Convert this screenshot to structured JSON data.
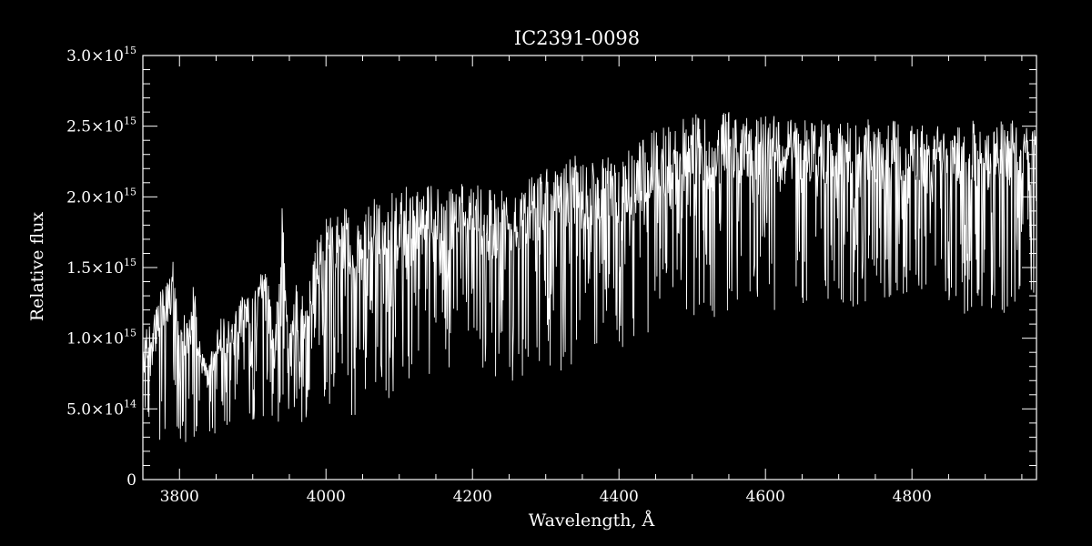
{
  "chart_data": {
    "type": "line",
    "title": "IC2391-0098",
    "xlabel": "Wavelength, Å",
    "ylabel": "Relative flux",
    "xlim": [
      3750,
      4970
    ],
    "ylim": [
      0,
      3000000000000000.0
    ],
    "xticks": [
      {
        "value": 3800,
        "label": "3800"
      },
      {
        "value": 4000,
        "label": "4000"
      },
      {
        "value": 4200,
        "label": "4200"
      },
      {
        "value": 4400,
        "label": "4400"
      },
      {
        "value": 4600,
        "label": "4600"
      },
      {
        "value": 4800,
        "label": "4800"
      }
    ],
    "yticks": [
      {
        "value": 0,
        "label": "0",
        "exp": ""
      },
      {
        "value": 500000000000000.0,
        "label": "5.0×10",
        "exp": "14"
      },
      {
        "value": 1000000000000000.0,
        "label": "1.0×10",
        "exp": "15"
      },
      {
        "value": 1500000000000000.0,
        "label": "1.5×10",
        "exp": "15"
      },
      {
        "value": 2000000000000000.0,
        "label": "2.0×10",
        "exp": "15"
      },
      {
        "value": 2500000000000000.0,
        "label": "2.5×10",
        "exp": "15"
      },
      {
        "value": 3000000000000000.0,
        "label": "3.0×10",
        "exp": "15"
      }
    ],
    "series": [
      {
        "color": "#ffffff",
        "envelope_x": [
          3750,
          3770,
          3780,
          3790,
          3800,
          3810,
          3820,
          3830,
          3840,
          3850,
          3860,
          3870,
          3880,
          3890,
          3900,
          3910,
          3920,
          3930,
          3940,
          3950,
          3960,
          3970,
          3980,
          3990,
          4000,
          4020,
          4040,
          4060,
          4080,
          4100,
          4120,
          4140,
          4160,
          4180,
          4200,
          4220,
          4240,
          4260,
          4280,
          4300,
          4320,
          4340,
          4360,
          4380,
          4400,
          4420,
          4440,
          4460,
          4480,
          4500,
          4520,
          4540,
          4560,
          4580,
          4600,
          4620,
          4640,
          4660,
          4680,
          4700,
          4720,
          4740,
          4760,
          4780,
          4800,
          4820,
          4840,
          4860,
          4880,
          4900,
          4920,
          4940,
          4960,
          4970
        ],
        "envelope_max": [
          1000000000000000.0,
          1250000000000000.0,
          1450000000000000.0,
          1600000000000000.0,
          1050000000000000.0,
          1250000000000000.0,
          1400000000000000.0,
          900000000000000.0,
          850000000000000.0,
          1100000000000000.0,
          1200000000000000.0,
          1100000000000000.0,
          1250000000000000.0,
          1350000000000000.0,
          1300000000000000.0,
          1500000000000000.0,
          1450000000000000.0,
          1000000000000000.0,
          1950000000000000.0,
          1100000000000000.0,
          1400000000000000.0,
          1300000000000000.0,
          1500000000000000.0,
          1750000000000000.0,
          1850000000000000.0,
          1950000000000000.0,
          1850000000000000.0,
          2000000000000000.0,
          1950000000000000.0,
          2100000000000000.0,
          2050000000000000.0,
          2100000000000000.0,
          2050000000000000.0,
          2150000000000000.0,
          2100000000000000.0,
          2050000000000000.0,
          2100000000000000.0,
          2000000000000000.0,
          2150000000000000.0,
          2200000000000000.0,
          2200000000000000.0,
          2300000000000000.0,
          2250000000000000.0,
          2350000000000000.0,
          2300000000000000.0,
          2350000000000000.0,
          2450000000000000.0,
          2500000000000000.0,
          2550000000000000.0,
          2600000000000000.0,
          2550000000000000.0,
          2600000000000000.0,
          2600000000000000.0,
          2580000000000000.0,
          2620000000000000.0,
          2580000000000000.0,
          2550000000000000.0,
          2550000000000000.0,
          2550000000000000.0,
          2520000000000000.0,
          2550000000000000.0,
          2550000000000000.0,
          2520000000000000.0,
          2550000000000000.0,
          2550000000000000.0,
          2500000000000000.0,
          2500000000000000.0,
          2500000000000000.0,
          2550000000000000.0,
          2500000000000000.0,
          2550000000000000.0,
          2550000000000000.0,
          2500000000000000.0,
          2500000000000000.0
        ],
        "envelope_min": [
          200000000000000.0,
          250000000000000.0,
          350000000000000.0,
          300000000000000.0,
          250000000000000.0,
          200000000000000.0,
          250000000000000.0,
          250000000000000.0,
          250000000000000.0,
          300000000000000.0,
          300000000000000.0,
          400000000000000.0,
          350000000000000.0,
          300000000000000.0,
          350000000000000.0,
          400000000000000.0,
          400000000000000.0,
          350000000000000.0,
          300000000000000.0,
          400000000000000.0,
          300000000000000.0,
          350000000000000.0,
          400000000000000.0,
          450000000000000.0,
          500000000000000.0,
          550000000000000.0,
          400000000000000.0,
          600000000000000.0,
          550000000000000.0,
          600000000000000.0,
          700000000000000.0,
          700000000000000.0,
          750000000000000.0,
          700000000000000.0,
          700000000000000.0,
          600000000000000.0,
          650000000000000.0,
          700000000000000.0,
          750000000000000.0,
          800000000000000.0,
          750000000000000.0,
          800000000000000.0,
          850000000000000.0,
          850000000000000.0,
          900000000000000.0,
          950000000000000.0,
          1000000000000000.0,
          1050000000000000.0,
          1100000000000000.0,
          1150000000000000.0,
          1100000000000000.0,
          1200000000000000.0,
          1150000000000000.0,
          1200000000000000.0,
          1200000000000000.0,
          1200000000000000.0,
          1250000000000000.0,
          1200000000000000.0,
          1250000000000000.0,
          1250000000000000.0,
          1200000000000000.0,
          1250000000000000.0,
          1250000000000000.0,
          1300000000000000.0,
          1300000000000000.0,
          1250000000000000.0,
          1250000000000000.0,
          1200000000000000.0,
          1150000000000000.0,
          1200000000000000.0,
          1150000000000000.0,
          1200000000000000.0,
          1300000000000000.0,
          1300000000000000.0
        ]
      }
    ],
    "grid": false,
    "legend": "none"
  }
}
